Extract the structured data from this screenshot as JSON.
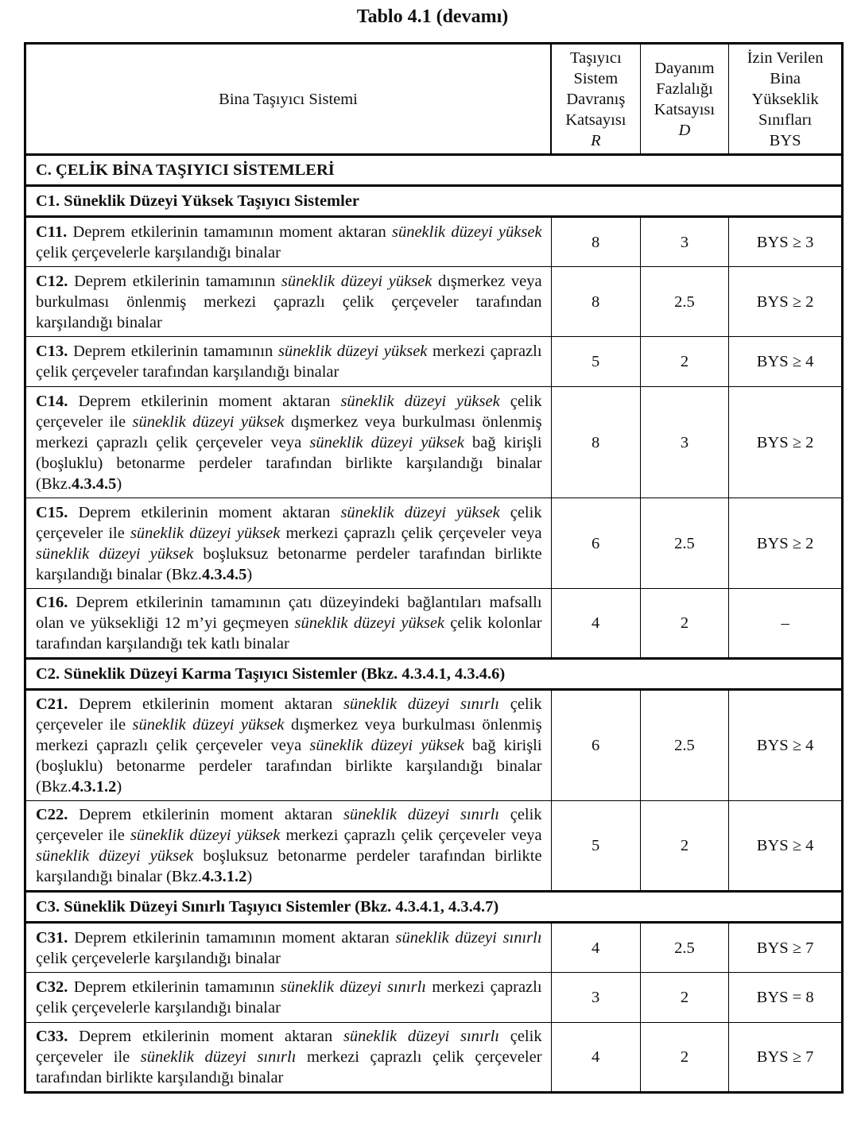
{
  "title": "Tablo 4.1 (devamı)",
  "header": {
    "col1": "Bina Taşıyıcı Sistemi",
    "col2": [
      "Taşıyıcı",
      "Sistem",
      "Davranış",
      "Katsayısı",
      "R"
    ],
    "col3": [
      "Dayanım",
      "Fazlalığı",
      "Katsayısı",
      "D"
    ],
    "col4": [
      "İzin Verilen",
      "Bina",
      "Yükseklik",
      "Sınıfları",
      "BYS"
    ]
  },
  "rows": [
    {
      "type": "section",
      "text": "C. ÇELİK BİNA TAŞIYICI SİSTEMLERİ"
    },
    {
      "type": "section",
      "text": "C1. Süneklik Düzeyi Yüksek Taşıyıcı Sistemler"
    },
    {
      "type": "item",
      "h": 63,
      "R": "8",
      "D": "3",
      "BYS": "BYS ≥ 3",
      "desc": [
        {
          "s": "b",
          "t": "C11."
        },
        {
          "t": " Deprem etkilerinin tamamının moment aktaran "
        },
        {
          "s": "i",
          "t": "süneklik düzeyi yüksek"
        },
        {
          "t": " çelik çerçevelerle karşılandığı binalar"
        }
      ]
    },
    {
      "type": "item",
      "h": 88,
      "R": "8",
      "D": "2.5",
      "BYS": "BYS ≥ 2",
      "desc": [
        {
          "s": "b",
          "t": "C12."
        },
        {
          "t": " Deprem etkilerinin tamamının "
        },
        {
          "s": "i",
          "t": "süneklik düzeyi yüksek"
        },
        {
          "t": " dışmerkez veya burkulması önlenmiş merkezi çaprazlı çelik çerçeveler tarafından karşılandığı binalar"
        }
      ]
    },
    {
      "type": "item",
      "h": 63,
      "R": "5",
      "D": "2",
      "BYS": "BYS ≥ 4",
      "desc": [
        {
          "s": "b",
          "t": "C13."
        },
        {
          "t": " Deprem etkilerinin tamamının "
        },
        {
          "s": "i",
          "t": "süneklik düzeyi yüksek"
        },
        {
          "t": " merkezi çaprazlı çelik çerçeveler tarafından karşılandığı binalar"
        }
      ]
    },
    {
      "type": "item",
      "h": 140,
      "R": "8",
      "D": "3",
      "BYS": "BYS ≥ 2",
      "desc": [
        {
          "s": "b",
          "t": "C14."
        },
        {
          "t": " Deprem etkilerinin moment aktaran "
        },
        {
          "s": "i",
          "t": "süneklik düzeyi yüksek"
        },
        {
          "t": " çelik çerçeveler ile "
        },
        {
          "s": "i",
          "t": "süneklik düzeyi yüksek"
        },
        {
          "t": " dışmerkez veya burkulması önlenmiş merkezi çaprazlı çelik çerçeveler veya "
        },
        {
          "s": "i",
          "t": "süneklik düzeyi yüksek"
        },
        {
          "t": " bağ kirişli (boşluklu) betonarme perdeler tarafından birlikte karşılandığı binalar (Bkz."
        },
        {
          "s": "b",
          "t": "4.3.4.5"
        },
        {
          "t": ")"
        }
      ]
    },
    {
      "type": "item",
      "h": 114,
      "R": "6",
      "D": "2.5",
      "BYS": "BYS ≥ 2",
      "desc": [
        {
          "s": "b",
          "t": "C15."
        },
        {
          "t": " Deprem etkilerinin moment aktaran "
        },
        {
          "s": "i",
          "t": "süneklik düzeyi yüksek"
        },
        {
          "t": " çelik çerçeveler ile "
        },
        {
          "s": "i",
          "t": "süneklik düzeyi yüksek"
        },
        {
          "t": " merkezi çaprazlı çelik çerçeveler veya "
        },
        {
          "s": "i",
          "t": "süneklik düzeyi yüksek"
        },
        {
          "t": " boşluksuz betonarme perdeler tarafından birlikte karşılandığı binalar (Bkz."
        },
        {
          "s": "b",
          "t": "4.3.4.5"
        },
        {
          "t": ")"
        }
      ]
    },
    {
      "type": "item",
      "h": 88,
      "R": "4",
      "D": "2",
      "BYS": "–",
      "desc": [
        {
          "s": "b",
          "t": "C16."
        },
        {
          "t": " Deprem etkilerinin tamamının çatı düzeyindeki bağlantıları mafsallı olan ve yüksekliği 12 m’yi geçmeyen "
        },
        {
          "s": "i",
          "t": "süneklik düzeyi yüksek"
        },
        {
          "t": " çelik kolonlar tarafından karşılandığı tek katlı binalar"
        }
      ]
    },
    {
      "type": "section",
      "text": "C2. Süneklik Düzeyi Karma Taşıyıcı Sistemler (Bkz. 4.3.4.1, 4.3.4.6)"
    },
    {
      "type": "item",
      "h": 140,
      "R": "6",
      "D": "2.5",
      "BYS": "BYS ≥ 4",
      "desc": [
        {
          "s": "b",
          "t": "C21."
        },
        {
          "t": " Deprem etkilerinin moment aktaran "
        },
        {
          "s": "i",
          "t": "süneklik düzeyi sınırlı"
        },
        {
          "t": " çelik çerçeveler ile "
        },
        {
          "s": "i",
          "t": "süneklik düzeyi yüksek"
        },
        {
          "t": " dışmerkez veya burkulması önlenmiş merkezi çaprazlı çelik çerçeveler veya "
        },
        {
          "s": "i",
          "t": "süneklik düzeyi yüksek"
        },
        {
          "t": " bağ kirişli (boşluklu) betonarme perdeler tarafından birlikte karşılandığı binalar (Bkz."
        },
        {
          "s": "b",
          "t": "4.3.1.2"
        },
        {
          "t": ")"
        }
      ]
    },
    {
      "type": "item",
      "h": 114,
      "R": "5",
      "D": "2",
      "BYS": "BYS ≥ 4",
      "desc": [
        {
          "s": "b",
          "t": "C22."
        },
        {
          "t": " Deprem etkilerinin moment aktaran "
        },
        {
          "s": "i",
          "t": "süneklik düzeyi sınırlı"
        },
        {
          "t": " çelik çerçeveler ile "
        },
        {
          "s": "i",
          "t": "süneklik düzeyi yüksek"
        },
        {
          "t": " merkezi çaprazlı çelik çerçeveler veya "
        },
        {
          "s": "i",
          "t": "süneklik düzeyi yüksek"
        },
        {
          "t": " boşluksuz betonarme perdeler tarafından birlikte karşılandığı binalar (Bkz."
        },
        {
          "s": "b",
          "t": "4.3.1.2"
        },
        {
          "t": ")"
        }
      ]
    },
    {
      "type": "section",
      "text": "C3. Süneklik Düzeyi Sınırlı Taşıyıcı Sistemler  (Bkz. 4.3.4.1, 4.3.4.7)"
    },
    {
      "type": "item",
      "h": 63,
      "R": "4",
      "D": "2.5",
      "BYS": "BYS ≥ 7",
      "desc": [
        {
          "s": "b",
          "t": "C31."
        },
        {
          "t": " Deprem etkilerinin tamamının moment aktaran "
        },
        {
          "s": "i",
          "t": "süneklik düzeyi sınırlı"
        },
        {
          "t": " çelik çerçevelerle karşılandığı binalar"
        }
      ]
    },
    {
      "type": "item",
      "h": 63,
      "R": "3",
      "D": "2",
      "BYS": "BYS = 8",
      "desc": [
        {
          "s": "b",
          "t": "C32."
        },
        {
          "t": " Deprem etkilerinin tamamının "
        },
        {
          "s": "i",
          "t": "süneklik düzeyi sınırlı"
        },
        {
          "t": " merkezi çaprazlı çelik çerçevelerle karşılandığı binalar"
        }
      ]
    },
    {
      "type": "item",
      "h": 88,
      "R": "4",
      "D": "2",
      "BYS": "BYS ≥ 7",
      "desc": [
        {
          "s": "b",
          "t": "C33."
        },
        {
          "t": " Deprem etkilerinin moment aktaran "
        },
        {
          "s": "i",
          "t": "süneklik düzeyi sınırlı"
        },
        {
          "t": " çelik çerçeveler ile "
        },
        {
          "s": "i",
          "t": "süneklik düzeyi sınırlı"
        },
        {
          "t": " merkezi çaprazlı çelik çerçeveler tarafından birlikte karşılandığı binalar"
        }
      ]
    }
  ]
}
